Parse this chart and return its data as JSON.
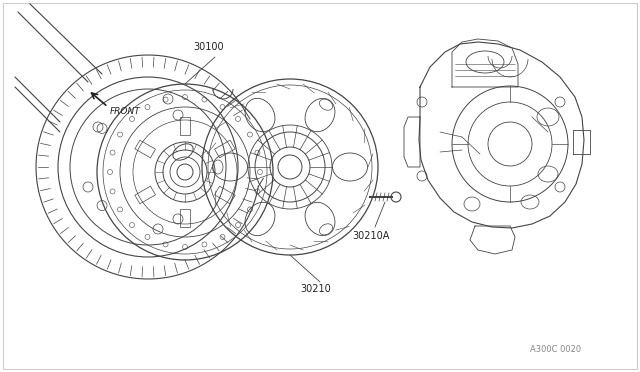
{
  "bg_color": "#ffffff",
  "line_color": "#444444",
  "text_color": "#222222",
  "fig_width": 6.4,
  "fig_height": 3.72,
  "dpi": 100,
  "label_30100": [
    2.05,
    2.62
  ],
  "label_30210": [
    3.38,
    2.52
  ],
  "label_30210A": [
    3.72,
    2.28
  ],
  "code": "A300C 0020"
}
